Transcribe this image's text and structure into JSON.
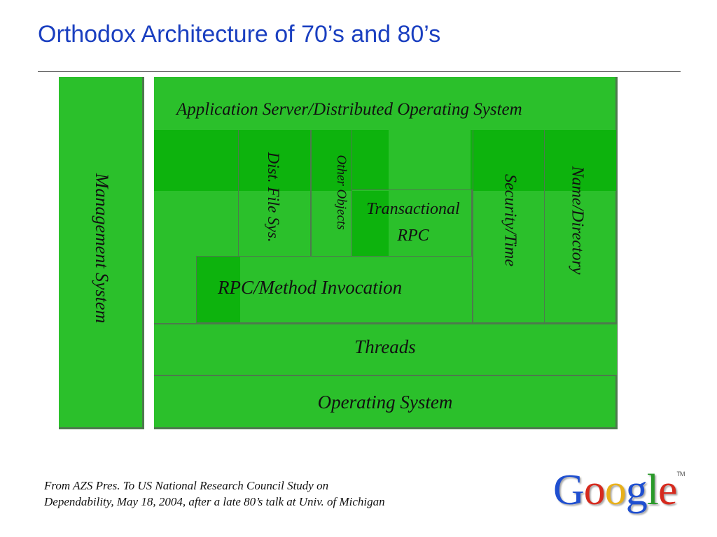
{
  "slide": {
    "title": "Orthodox Architecture of 70’s and 80’s",
    "footnote_line1": "From AZS Pres. To US National Research Council Study on",
    "footnote_line2": "Dependability, May 18, 2004, after a late 80’s talk at Univ. of Michigan"
  },
  "diagram": {
    "management": "Management System",
    "app_server": "Application Server/Distributed Operating System",
    "dist_file_sys": "Dist. File Sys.",
    "other_objects": "Other Objects",
    "transactional_rpc_1": "Transactional",
    "transactional_rpc_2": "RPC",
    "security_time": "Security/Time",
    "name_directory": "Name/Directory",
    "rpc_method": "RPC/Method Invocation",
    "threads": "Threads",
    "operating_system": "Operating System"
  },
  "logo": {
    "letters": [
      "G",
      "o",
      "o",
      "g",
      "l",
      "e"
    ],
    "colors": [
      "#1f4fd0",
      "#d62a1e",
      "#e8b01a",
      "#1f4fd0",
      "#2a9a2a",
      "#d62a1e"
    ],
    "tm": "TM"
  }
}
